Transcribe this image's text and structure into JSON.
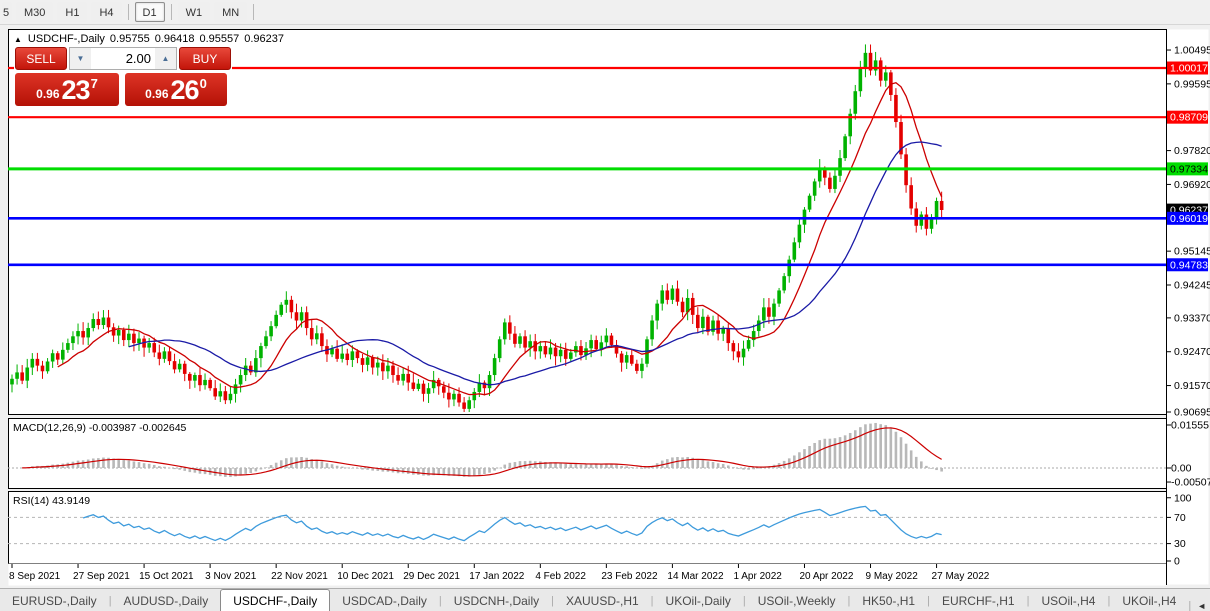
{
  "toolbar": {
    "timeframes": [
      {
        "label": "5",
        "active": false,
        "cut": true
      },
      {
        "label": "M30",
        "active": false
      },
      {
        "label": "H1",
        "active": false
      },
      {
        "label": "H4",
        "active": false
      },
      {
        "label": "D1",
        "active": true
      },
      {
        "label": "W1",
        "active": false
      },
      {
        "label": "MN",
        "active": false
      }
    ]
  },
  "title": {
    "collapse_icon": "▲",
    "symbol": "USDCHF-,Daily",
    "open": "0.95755",
    "high": "0.96418",
    "low": "0.95557",
    "close": "0.96237"
  },
  "trade": {
    "sell_label": "SELL",
    "buy_label": "BUY",
    "volume": "2.00",
    "spin_down_icon": "▼",
    "spin_up_icon": "▲",
    "sell_price": {
      "prefix": "0.96",
      "big": "23",
      "sup": "7"
    },
    "buy_price": {
      "prefix": "0.96",
      "big": "26",
      "sup": "0"
    }
  },
  "chart_data": {
    "type": "candlestick",
    "symbol": "USDCHF-,Daily",
    "up_color": "#00b200",
    "down_color": "#e30000",
    "ma_fast": {
      "period": 10,
      "color": "#cc0000"
    },
    "ma_slow": {
      "period": 24,
      "color": "#1a1aa6"
    },
    "price_axis_labels": [
      "1.00495",
      "0.99595",
      "0.97820",
      "0.96920",
      "0.95145",
      "0.94245",
      "0.93370",
      "0.92470",
      "0.91570",
      "0.90695"
    ],
    "hlines": [
      {
        "price": 1.00017,
        "label": "1.00017",
        "color": "#ff0000",
        "badge_bg": "#ff0000",
        "badge_fg": "#ffffff",
        "width": 2.2
      },
      {
        "price": 0.98709,
        "label": "0.98709",
        "color": "#ff0000",
        "badge_bg": "#ff0000",
        "badge_fg": "#ffffff",
        "width": 2.2
      },
      {
        "price": 0.97334,
        "label": "0.97334",
        "color": "#00dd00",
        "badge_bg": "#00dd00",
        "badge_fg": "#000000",
        "width": 3
      },
      {
        "price": 0.96019,
        "label": "0.96019",
        "color": "#0000ff",
        "badge_bg": "#0000ff",
        "badge_fg": "#ffffff",
        "width": 2.6
      },
      {
        "price": 0.94783,
        "label": "0.94783",
        "color": "#0000ff",
        "badge_bg": "#0000ff",
        "badge_fg": "#ffffff",
        "width": 2.6
      }
    ],
    "current_price": {
      "price": 0.96237,
      "label": "0.96237",
      "badge_bg": "#000000",
      "badge_fg": "#ffffff"
    },
    "x_tick_labels": [
      "8 Sep 2021",
      "27 Sep 2021",
      "15 Oct 2021",
      "3 Nov 2021",
      "22 Nov 2021",
      "10 Dec 2021",
      "29 Dec 2021",
      "17 Jan 2022",
      "4 Feb 2022",
      "23 Feb 2022",
      "14 Mar 2022",
      "1 Apr 2022",
      "20 Apr 2022",
      "9 May 2022",
      "27 May 2022"
    ],
    "x_tick_every": 13,
    "ylim": [
      0.90695,
      1.00959
    ],
    "closes": [
      0.9175,
      0.9192,
      0.917,
      0.9205,
      0.9228,
      0.921,
      0.9195,
      0.9221,
      0.9243,
      0.9226,
      0.9252,
      0.927,
      0.9288,
      0.9302,
      0.9285,
      0.931,
      0.9334,
      0.9318,
      0.9338,
      0.9312,
      0.929,
      0.9305,
      0.9278,
      0.9295,
      0.927,
      0.9282,
      0.9258,
      0.927,
      0.9245,
      0.9228,
      0.9248,
      0.9222,
      0.92,
      0.9215,
      0.9188,
      0.917,
      0.9185,
      0.9158,
      0.9172,
      0.915,
      0.9128,
      0.9142,
      0.9118,
      0.9135,
      0.916,
      0.9185,
      0.921,
      0.9192,
      0.923,
      0.9262,
      0.9288,
      0.9315,
      0.9345,
      0.9372,
      0.9385,
      0.9352,
      0.933,
      0.9352,
      0.931,
      0.928,
      0.9296,
      0.9262,
      0.924,
      0.9255,
      0.9228,
      0.9242,
      0.9225,
      0.9248,
      0.923,
      0.9212,
      0.9232,
      0.9205,
      0.9218,
      0.9195,
      0.921,
      0.9185,
      0.917,
      0.9188,
      0.9165,
      0.9148,
      0.9162,
      0.9135,
      0.915,
      0.9172,
      0.9155,
      0.9138,
      0.912,
      0.9135,
      0.9112,
      0.9095,
      0.9118,
      0.914,
      0.9165,
      0.915,
      0.9185,
      0.923,
      0.928,
      0.9325,
      0.9295,
      0.9268,
      0.9288,
      0.9258,
      0.9275,
      0.9248,
      0.9262,
      0.924,
      0.9258,
      0.9235,
      0.9252,
      0.9228,
      0.9245,
      0.9262,
      0.9238,
      0.9256,
      0.9278,
      0.9254,
      0.9272,
      0.929,
      0.9265,
      0.9242,
      0.9218,
      0.9238,
      0.9215,
      0.9196,
      0.9215,
      0.928,
      0.933,
      0.9375,
      0.941,
      0.9385,
      0.9415,
      0.938,
      0.9352,
      0.939,
      0.9345,
      0.931,
      0.934,
      0.93,
      0.933,
      0.9295,
      0.931,
      0.927,
      0.9248,
      0.9232,
      0.9255,
      0.9278,
      0.9302,
      0.933,
      0.9365,
      0.934,
      0.9375,
      0.941,
      0.9448,
      0.9492,
      0.9538,
      0.9585,
      0.9625,
      0.9662,
      0.97,
      0.9735,
      0.971,
      0.968,
      0.9715,
      0.9762,
      0.982,
      0.988,
      0.994,
      1.0,
      1.0042,
      0.9995,
      1.0022,
      0.9968,
      0.999,
      0.993,
      0.9858,
      0.9772,
      0.969,
      0.9628,
      0.9582,
      0.9612,
      0.9574,
      0.96,
      0.9648,
      0.9624
    ],
    "macd": {
      "label": "MACD(12,26,9)",
      "values_text": "-0.003987 -0.002645",
      "fast": 12,
      "slow": 26,
      "signal": 9,
      "axis_labels": [
        "0.01555",
        "0.00",
        "-0.005075"
      ],
      "axis_values": [
        0.01555,
        0,
        -0.005075
      ],
      "hist_color": "#b8b8b8",
      "signal_color": "#cc0000"
    },
    "rsi": {
      "label": "RSI(14)",
      "value_text": "43.9149",
      "period": 14,
      "axis_labels": [
        "100",
        "70",
        "30",
        "0"
      ],
      "axis_values": [
        100,
        70,
        30,
        0
      ],
      "levels": [
        70,
        30
      ],
      "color": "#3e9bdc"
    }
  },
  "bottom_tabs": {
    "items": [
      "EURUSD-,Daily",
      "AUDUSD-,Daily",
      "USDCHF-,Daily",
      "USDCAD-,Daily",
      "USDCNH-,Daily",
      "XAUUSD-,H1",
      "UKOil-,Daily",
      "USOil-,Weekly",
      "HK50-,H1",
      "EURCHF-,H1",
      "USOil-,H4",
      "UKOil-,H4"
    ],
    "active_index": 2,
    "scroll_left": "◄",
    "scroll_right": "►"
  }
}
